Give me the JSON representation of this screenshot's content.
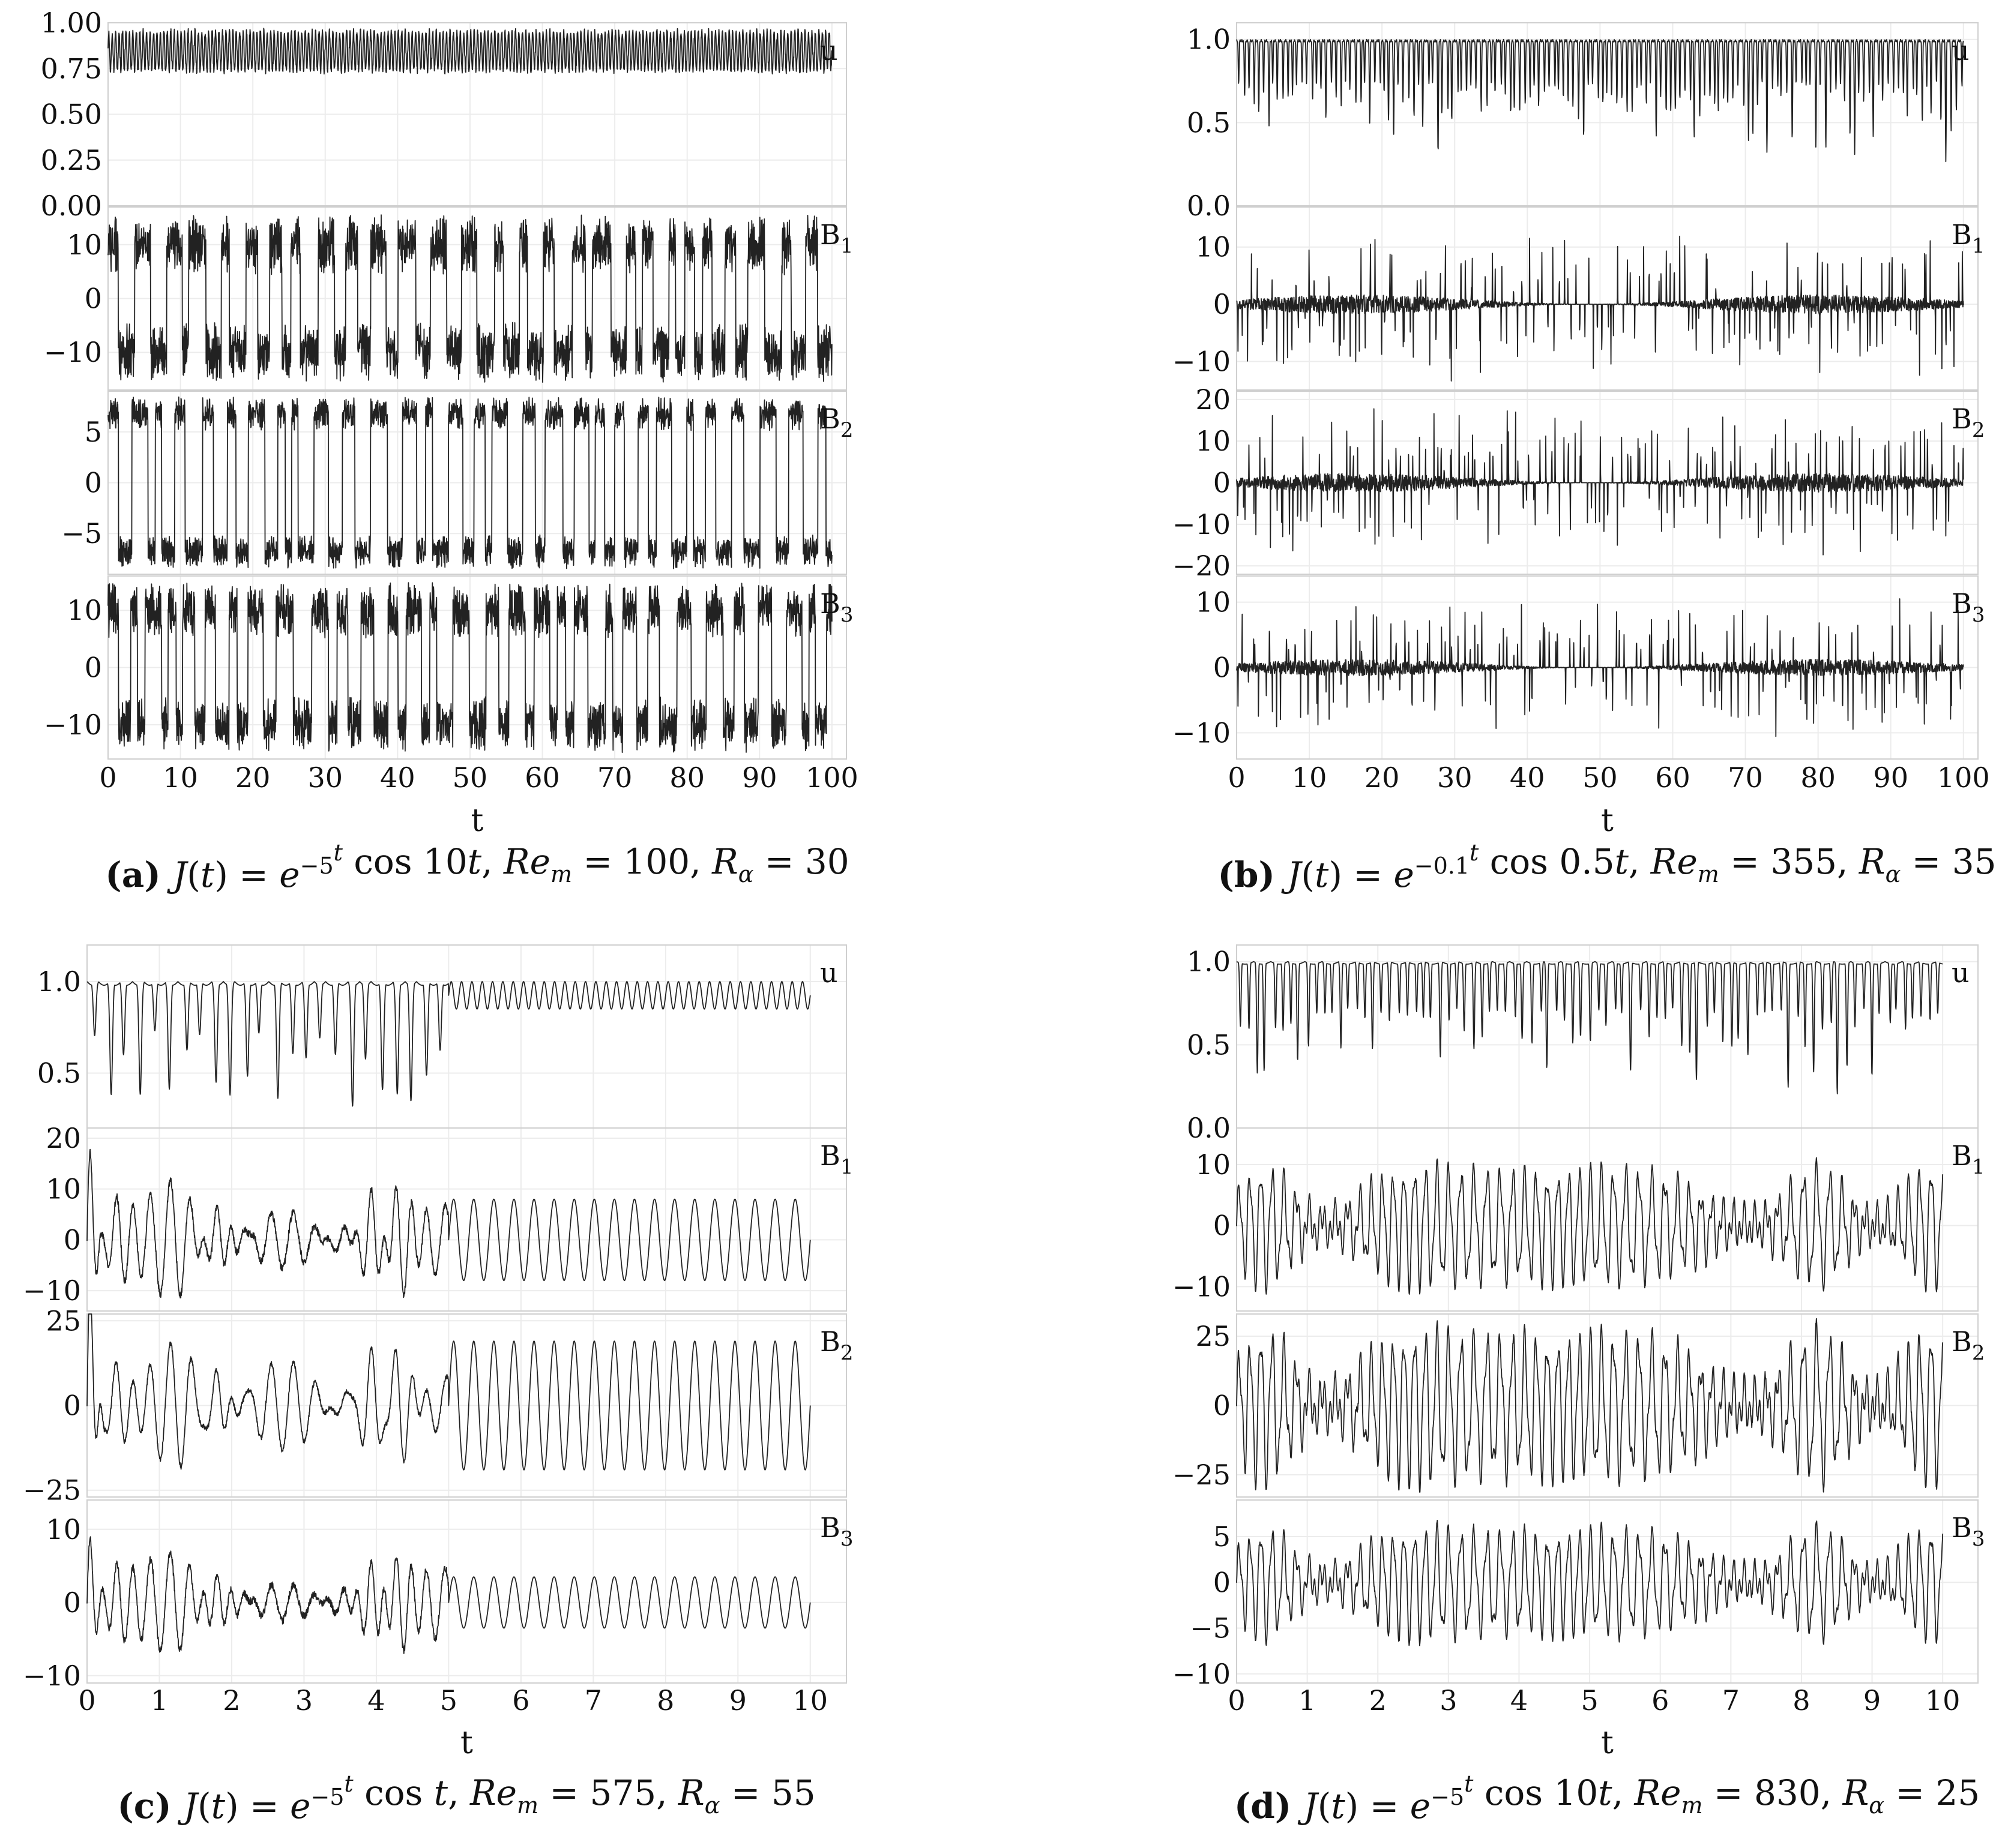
{
  "figure": {
    "panels": [
      {
        "id": "a",
        "caption": {
          "tag": "(a)",
          "text_html": "<tspan font-style='italic'>J</tspan>(<tspan font-style='italic'>t</tspan>) = <tspan font-style='italic'>e</tspan><tspan dy='-22' font-size='38'>−5</tspan><tspan dy='-22' font-size='38' font-style='italic'>t</tspan><tspan dy='22'> cos 10</tspan><tspan font-style='italic'>t</tspan>, <tspan font-style='italic'>Re</tspan><tspan dy='14' font-size='38' font-style='italic'>m</tspan><tspan dy='-14'> = 100, </tspan><tspan font-style='italic'>R</tspan><tspan dy='14' font-size='38' font-style='italic'>α</tspan><tspan dy='-14'> = 30</tspan>"
        },
        "xlabel": "t",
        "xticks": [
          "0",
          "10",
          "20",
          "30",
          "40",
          "50",
          "60",
          "70",
          "80",
          "90",
          "100"
        ],
        "xrange": [
          0,
          102
        ],
        "signal_end": 100,
        "subplots": [
          {
            "label": "u",
            "sub": "",
            "yrange": [
              0.0,
              1.0
            ],
            "ytick_values": [
              0,
              0.25,
              0.5,
              0.75,
              1.0
            ],
            "ytick_labels": [
              "0.00",
              "0.25",
              "0.50",
              "0.75",
              "1.00"
            ],
            "approx_signal": {
              "style": "band",
              "lo": 0.72,
              "hi": 0.97,
              "cycles": 210
            }
          },
          {
            "label": "B",
            "sub": "1",
            "yrange": [
              -17,
              17
            ],
            "ytick_values": [
              -10,
              0,
              10
            ],
            "ytick_labels": [
              "−10",
              "0",
              "10"
            ],
            "approx_signal": {
              "style": "square",
              "amp": 10,
              "jitter": 4,
              "cycles": 58
            }
          },
          {
            "label": "B",
            "sub": "2",
            "yrange": [
              -9,
              9
            ],
            "ytick_values": [
              -5,
              0,
              5
            ],
            "ytick_labels": [
              "−5",
              "0",
              "5"
            ],
            "approx_signal": {
              "style": "square",
              "amp": 6.8,
              "jitter": 1.2,
              "cycles": 58
            }
          },
          {
            "label": "B",
            "sub": "3",
            "yrange": [
              -16,
              16
            ],
            "ytick_values": [
              -10,
              0,
              10
            ],
            "ytick_labels": [
              "−10",
              "0",
              "10"
            ],
            "approx_signal": {
              "style": "square",
              "amp": 10,
              "jitter": 3.5,
              "cycles": 58
            }
          }
        ]
      },
      {
        "id": "b",
        "caption": {
          "tag": "(b)",
          "text_html": "<tspan font-style='italic'>J</tspan>(<tspan font-style='italic'>t</tspan>) = <tspan font-style='italic'>e</tspan><tspan dy='-22' font-size='38'>−0.1</tspan><tspan dy='-22' font-size='38' font-style='italic'>t</tspan><tspan dy='22'> cos 0.5</tspan><tspan font-style='italic'>t</tspan>, <tspan font-style='italic'>Re</tspan><tspan dy='14' font-size='38' font-style='italic'>m</tspan><tspan dy='-14'> = 355, </tspan><tspan font-style='italic'>R</tspan><tspan dy='14' font-size='38' font-style='italic'>α</tspan><tspan dy='-14'> = 35</tspan>"
        },
        "xlabel": "t",
        "xticks": [
          "0",
          "10",
          "20",
          "30",
          "40",
          "50",
          "60",
          "70",
          "80",
          "90",
          "100"
        ],
        "xrange": [
          0,
          102
        ],
        "signal_end": 100,
        "subplots": [
          {
            "label": "u",
            "sub": "",
            "yrange": [
              0.0,
              1.1
            ],
            "ytick_values": [
              0,
              0.5,
              1.0
            ],
            "ytick_labels": [
              "0.0",
              "0.5",
              "1.0"
            ],
            "approx_signal": {
              "style": "dips",
              "base": 1.0,
              "minv": 0.35,
              "count": 150
            }
          },
          {
            "label": "B",
            "sub": "1",
            "yrange": [
              -15,
              17
            ],
            "ytick_values": [
              -10,
              0,
              10
            ],
            "ytick_labels": [
              "−10",
              "0",
              "10"
            ],
            "approx_signal": {
              "style": "spikes",
              "base": 0,
              "amp": 13,
              "count": 170
            }
          },
          {
            "label": "B",
            "sub": "2",
            "yrange": [
              -22,
              22
            ],
            "ytick_values": [
              -20,
              -10,
              0,
              10,
              20
            ],
            "ytick_labels": [
              "−20",
              "−10",
              "0",
              "10",
              "20"
            ],
            "approx_signal": {
              "style": "spikes",
              "base": 0,
              "amp": 18,
              "count": 190
            }
          },
          {
            "label": "B",
            "sub": "3",
            "yrange": [
              -14,
              14
            ],
            "ytick_values": [
              -10,
              0,
              10
            ],
            "ytick_labels": [
              "−10",
              "0",
              "10"
            ],
            "approx_signal": {
              "style": "spikes",
              "base": 0,
              "amp": 10,
              "count": 170
            }
          }
        ]
      },
      {
        "id": "c",
        "caption": {
          "tag": "(c)",
          "text_html": "<tspan font-style='italic'>J</tspan>(<tspan font-style='italic'>t</tspan>) = <tspan font-style='italic'>e</tspan><tspan dy='-22' font-size='38'>−5</tspan><tspan dy='-22' font-size='38' font-style='italic'>t</tspan><tspan dy='22'> cos </tspan><tspan font-style='italic'>t</tspan>,  <tspan font-style='italic'>Re</tspan><tspan dy='14' font-size='38' font-style='italic'>m</tspan><tspan dy='-14'> = 575,  </tspan><tspan font-style='italic'>R</tspan><tspan dy='14' font-size='38' font-style='italic'>α</tspan><tspan dy='-14'> = 55</tspan>"
        },
        "xlabel": "t",
        "xticks": [
          "0",
          "1",
          "2",
          "3",
          "4",
          "5",
          "6",
          "7",
          "8",
          "9",
          "10"
        ],
        "xrange": [
          0,
          10.5
        ],
        "signal_end": 10,
        "subplots": [
          {
            "label": "u",
            "sub": "",
            "yrange": [
              0.2,
              1.2
            ],
            "ytick_values": [
              0.5,
              1.0
            ],
            "ytick_labels": [
              "0.5",
              "1.0"
            ],
            "approx_signal": {
              "style": "transient_dips",
              "base": 1.0,
              "minv": 0.3,
              "count": 24,
              "split": 0.5,
              "osc_lo": 0.85,
              "osc_hi": 1.0,
              "osc_cycles": 70
            }
          },
          {
            "label": "B",
            "sub": "1",
            "yrange": [
              -14,
              22
            ],
            "ytick_values": [
              -10,
              0,
              10,
              20
            ],
            "ytick_labels": [
              "−10",
              "0",
              "10",
              "20"
            ],
            "approx_signal": {
              "style": "transient_sine",
              "amp": 8,
              "cycles": 36,
              "split": 0.5,
              "bias": 0,
              "chaos": 7
            }
          },
          {
            "label": "B",
            "sub": "2",
            "yrange": [
              -27,
              27
            ],
            "ytick_values": [
              -25,
              0,
              25
            ],
            "ytick_labels": [
              "−25",
              "0",
              "25"
            ],
            "approx_signal": {
              "style": "transient_sine",
              "amp": 19,
              "cycles": 36,
              "split": 0.5,
              "bias": 0,
              "chaos": 7
            }
          },
          {
            "label": "B",
            "sub": "3",
            "yrange": [
              -11,
              14
            ],
            "ytick_values": [
              -10,
              0,
              10
            ],
            "ytick_labels": [
              "−10",
              "0",
              "10"
            ],
            "approx_signal": {
              "style": "transient_sine",
              "amp": 3.5,
              "cycles": 36,
              "split": 0.5,
              "bias": 0,
              "chaos": 5
            }
          }
        ]
      },
      {
        "id": "d",
        "caption": {
          "tag": "(d)",
          "text_html": "<tspan font-style='italic'>J</tspan>(<tspan font-style='italic'>t</tspan>) = <tspan font-style='italic'>e</tspan><tspan dy='-22' font-size='38'>−5</tspan><tspan dy='-22' font-size='38' font-style='italic'>t</tspan><tspan dy='22'> cos 10</tspan><tspan font-style='italic'>t</tspan>,  <tspan font-style='italic'>Re</tspan><tspan dy='14' font-size='38' font-style='italic'>m</tspan><tspan dy='-14'> = 830,  </tspan><tspan font-style='italic'>R</tspan><tspan dy='14' font-size='38' font-style='italic'>α</tspan><tspan dy='-14'> = 25</tspan>"
        },
        "xlabel": "t",
        "xticks": [
          "0",
          "1",
          "2",
          "3",
          "4",
          "5",
          "6",
          "7",
          "8",
          "9",
          "10"
        ],
        "xrange": [
          0,
          10.5
        ],
        "signal_end": 10,
        "subplots": [
          {
            "label": "u",
            "sub": "",
            "yrange": [
              0.0,
              1.1
            ],
            "ytick_values": [
              0,
              0.5,
              1.0
            ],
            "ytick_labels": [
              "0.0",
              "0.5",
              "1.0"
            ],
            "approx_signal": {
              "style": "dips",
              "base": 1.0,
              "minv": 0.3,
              "count": 85
            }
          },
          {
            "label": "B",
            "sub": "1",
            "yrange": [
              -14,
              16
            ],
            "ytick_values": [
              -10,
              0,
              10
            ],
            "ytick_labels": [
              "−10",
              "0",
              "10"
            ],
            "approx_signal": {
              "style": "chaotic",
              "amp": 9,
              "cycles": 60
            }
          },
          {
            "label": "B",
            "sub": "2",
            "yrange": [
              -33,
              33
            ],
            "ytick_values": [
              -25,
              0,
              25
            ],
            "ytick_labels": [
              "−25",
              "0",
              "25"
            ],
            "approx_signal": {
              "style": "chaotic",
              "amp": 25,
              "cycles": 60
            }
          },
          {
            "label": "B",
            "sub": "3",
            "yrange": [
              -11,
              9
            ],
            "ytick_values": [
              -10,
              -5,
              0,
              5
            ],
            "ytick_labels": [
              "−10",
              "−5",
              "0",
              "5"
            ],
            "approx_signal": {
              "style": "chaotic",
              "amp": 5.5,
              "cycles": 60
            }
          }
        ]
      }
    ]
  },
  "chart_data": [
    {
      "type": "line",
      "panel": "a",
      "xlabel": "t",
      "xlim": [
        0,
        100
      ],
      "series": [
        {
          "name": "u",
          "ylim": [
            0,
            1.0
          ]
        },
        {
          "name": "B1",
          "ylim": [
            -17,
            17
          ]
        },
        {
          "name": "B2",
          "ylim": [
            -9,
            9
          ]
        },
        {
          "name": "B3",
          "ylim": [
            -16,
            16
          ]
        }
      ]
    },
    {
      "type": "line",
      "panel": "b",
      "xlabel": "t",
      "xlim": [
        0,
        100
      ],
      "series": [
        {
          "name": "u",
          "ylim": [
            0,
            1.1
          ]
        },
        {
          "name": "B1",
          "ylim": [
            -15,
            17
          ]
        },
        {
          "name": "B2",
          "ylim": [
            -22,
            22
          ]
        },
        {
          "name": "B3",
          "ylim": [
            -14,
            14
          ]
        }
      ]
    },
    {
      "type": "line",
      "panel": "c",
      "xlabel": "t",
      "xlim": [
        0,
        10
      ],
      "series": [
        {
          "name": "u",
          "ylim": [
            0.2,
            1.2
          ]
        },
        {
          "name": "B1",
          "ylim": [
            -14,
            22
          ]
        },
        {
          "name": "B2",
          "ylim": [
            -27,
            27
          ]
        },
        {
          "name": "B3",
          "ylim": [
            -11,
            14
          ]
        }
      ]
    },
    {
      "type": "line",
      "panel": "d",
      "xlabel": "t",
      "xlim": [
        0,
        10
      ],
      "series": [
        {
          "name": "u",
          "ylim": [
            0,
            1.1
          ]
        },
        {
          "name": "B1",
          "ylim": [
            -14,
            16
          ]
        },
        {
          "name": "B2",
          "ylim": [
            -33,
            33
          ]
        },
        {
          "name": "B3",
          "ylim": [
            -11,
            9
          ]
        }
      ]
    }
  ]
}
